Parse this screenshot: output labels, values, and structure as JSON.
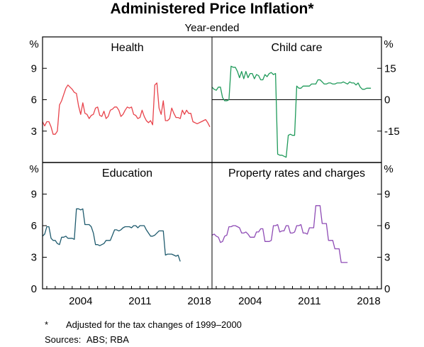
{
  "title": "Administered Price Inflation*",
  "subtitle": "Year-ended",
  "footnote": {
    "marker": "*",
    "text": "Adjusted for the tax changes of 1999–2000"
  },
  "sources": {
    "label": "Sources:",
    "text": "ABS; RBA"
  },
  "axis_unit": "%",
  "chart_data": [
    {
      "type": "line",
      "panel": "top-left",
      "title": "Health",
      "color": "#e8434b",
      "ylim": [
        0,
        12
      ],
      "yticks": [
        3,
        6,
        9
      ],
      "y_axis_side": "left",
      "xlim": [
        1999.5,
        2019.5
      ],
      "x_tick_labels": [],
      "points": [
        [
          1999.5,
          3.9
        ],
        [
          1999.75,
          3.5
        ],
        [
          2000.0,
          3.9
        ],
        [
          2000.25,
          3.9
        ],
        [
          2000.5,
          3.4
        ],
        [
          2000.75,
          2.7
        ],
        [
          2001.0,
          2.7
        ],
        [
          2001.25,
          3.0
        ],
        [
          2001.5,
          5.5
        ],
        [
          2001.75,
          5.9
        ],
        [
          2002.0,
          6.5
        ],
        [
          2002.25,
          7.1
        ],
        [
          2002.5,
          7.4
        ],
        [
          2002.75,
          7.2
        ],
        [
          2003.0,
          7.0
        ],
        [
          2003.25,
          6.7
        ],
        [
          2003.5,
          6.6
        ],
        [
          2003.75,
          5.4
        ],
        [
          2004.0,
          4.6
        ],
        [
          2004.25,
          5.7
        ],
        [
          2004.5,
          4.7
        ],
        [
          2004.75,
          4.6
        ],
        [
          2005.0,
          4.2
        ],
        [
          2005.25,
          4.5
        ],
        [
          2005.5,
          4.6
        ],
        [
          2005.75,
          5.2
        ],
        [
          2006.0,
          5.3
        ],
        [
          2006.25,
          4.5
        ],
        [
          2006.5,
          4.4
        ],
        [
          2006.75,
          4.9
        ],
        [
          2007.0,
          4.2
        ],
        [
          2007.25,
          4.4
        ],
        [
          2007.5,
          5.0
        ],
        [
          2007.75,
          5.1
        ],
        [
          2008.0,
          5.3
        ],
        [
          2008.25,
          5.3
        ],
        [
          2008.5,
          5.0
        ],
        [
          2008.75,
          4.4
        ],
        [
          2009.0,
          4.6
        ],
        [
          2009.25,
          5.0
        ],
        [
          2009.5,
          5.3
        ],
        [
          2009.75,
          5.2
        ],
        [
          2010.0,
          5.3
        ],
        [
          2010.25,
          4.6
        ],
        [
          2010.5,
          4.5
        ],
        [
          2010.75,
          4.2
        ],
        [
          2011.0,
          4.3
        ],
        [
          2011.25,
          5.0
        ],
        [
          2011.5,
          4.4
        ],
        [
          2011.75,
          4.0
        ],
        [
          2012.0,
          3.8
        ],
        [
          2012.25,
          4.0
        ],
        [
          2012.5,
          3.6
        ],
        [
          2012.75,
          7.4
        ],
        [
          2013.0,
          7.6
        ],
        [
          2013.25,
          5.2
        ],
        [
          2013.5,
          4.6
        ],
        [
          2013.75,
          5.9
        ],
        [
          2014.0,
          4.0
        ],
        [
          2014.25,
          4.0
        ],
        [
          2014.5,
          4.2
        ],
        [
          2014.75,
          5.2
        ],
        [
          2015.0,
          4.7
        ],
        [
          2015.25,
          4.3
        ],
        [
          2015.5,
          4.3
        ],
        [
          2015.75,
          4.2
        ],
        [
          2016.0,
          5.0
        ],
        [
          2016.25,
          4.6
        ],
        [
          2016.5,
          5.0
        ],
        [
          2016.75,
          4.7
        ],
        [
          2017.0,
          4.7
        ],
        [
          2017.25,
          3.9
        ],
        [
          2017.5,
          3.8
        ],
        [
          2017.75,
          3.7
        ],
        [
          2018.0,
          3.8
        ],
        [
          2018.25,
          3.9
        ],
        [
          2018.5,
          4.0
        ],
        [
          2018.75,
          4.1
        ],
        [
          2019.0,
          3.8
        ],
        [
          2019.25,
          3.4
        ]
      ]
    },
    {
      "type": "line",
      "panel": "top-right",
      "title": "Child care",
      "color": "#1f9a5a",
      "ylim": [
        -30,
        30
      ],
      "yticks": [
        -15,
        0,
        15
      ],
      "y_axis_side": "right",
      "xlim": [
        1999.5,
        2019.5
      ],
      "x_tick_labels": [],
      "points": [
        [
          1999.5,
          6
        ],
        [
          1999.75,
          5
        ],
        [
          2000.0,
          4.5
        ],
        [
          2000.25,
          6
        ],
        [
          2000.5,
          6
        ],
        [
          2000.75,
          1
        ],
        [
          2001.0,
          -0.5
        ],
        [
          2001.25,
          -0.5
        ],
        [
          2001.5,
          0
        ],
        [
          2001.75,
          16
        ],
        [
          2002.0,
          15.5
        ],
        [
          2002.25,
          15.5
        ],
        [
          2002.5,
          13.5
        ],
        [
          2002.75,
          10.5
        ],
        [
          2003.0,
          13.5
        ],
        [
          2003.25,
          10
        ],
        [
          2003.5,
          13.5
        ],
        [
          2003.75,
          10.5
        ],
        [
          2004.0,
          12.5
        ],
        [
          2004.25,
          12.5
        ],
        [
          2004.5,
          10
        ],
        [
          2004.75,
          12
        ],
        [
          2005.0,
          11.5
        ],
        [
          2005.25,
          9.5
        ],
        [
          2005.5,
          9.5
        ],
        [
          2005.75,
          12
        ],
        [
          2006.0,
          11
        ],
        [
          2006.25,
          12.5
        ],
        [
          2006.5,
          13
        ],
        [
          2006.75,
          12
        ],
        [
          2007.0,
          12.5
        ],
        [
          2007.25,
          -26
        ],
        [
          2007.5,
          -26.5
        ],
        [
          2007.75,
          -26.5
        ],
        [
          2008.0,
          -27
        ],
        [
          2008.25,
          -27.5
        ],
        [
          2008.5,
          -17
        ],
        [
          2008.75,
          -16.5
        ],
        [
          2009.0,
          -17
        ],
        [
          2009.25,
          -17
        ],
        [
          2009.5,
          6.5
        ],
        [
          2009.75,
          5.5
        ],
        [
          2010.0,
          5.5
        ],
        [
          2010.25,
          6.5
        ],
        [
          2010.5,
          6.5
        ],
        [
          2010.75,
          6.5
        ],
        [
          2011.0,
          6.5
        ],
        [
          2011.25,
          7.5
        ],
        [
          2011.5,
          7.5
        ],
        [
          2011.75,
          7.5
        ],
        [
          2012.0,
          9.5
        ],
        [
          2012.25,
          9.5
        ],
        [
          2012.5,
          8.5
        ],
        [
          2012.75,
          7.5
        ],
        [
          2013.0,
          7.5
        ],
        [
          2013.25,
          8
        ],
        [
          2013.5,
          8
        ],
        [
          2013.75,
          7.5
        ],
        [
          2014.0,
          7.5
        ],
        [
          2014.25,
          8
        ],
        [
          2014.5,
          8
        ],
        [
          2014.75,
          8
        ],
        [
          2015.0,
          8.5
        ],
        [
          2015.25,
          8
        ],
        [
          2015.5,
          7.5
        ],
        [
          2015.75,
          8.5
        ],
        [
          2016.0,
          8
        ],
        [
          2016.25,
          8
        ],
        [
          2016.5,
          7
        ],
        [
          2016.75,
          8
        ],
        [
          2017.0,
          6
        ],
        [
          2017.25,
          5
        ],
        [
          2017.5,
          5
        ],
        [
          2017.75,
          5.5
        ],
        [
          2018.0,
          5.5
        ],
        [
          2018.25,
          5.5
        ]
      ]
    },
    {
      "type": "line",
      "panel": "bottom-left",
      "title": "Education",
      "color": "#1f5b6e",
      "ylim": [
        0,
        12
      ],
      "yticks": [
        0,
        3,
        6,
        9
      ],
      "y_axis_side": "left",
      "xlim": [
        1999.5,
        2019.5
      ],
      "x_tick_labels": [
        {
          "x": 2004,
          "label": "2004"
        },
        {
          "x": 2011,
          "label": "2011"
        },
        {
          "x": 2018,
          "label": "2018"
        }
      ],
      "points": [
        [
          1999.5,
          5.0
        ],
        [
          1999.75,
          5.2
        ],
        [
          2000.0,
          5.9
        ],
        [
          2000.25,
          5.9
        ],
        [
          2000.5,
          4.8
        ],
        [
          2000.75,
          4.6
        ],
        [
          2001.0,
          4.6
        ],
        [
          2001.25,
          4.3
        ],
        [
          2001.5,
          4.2
        ],
        [
          2001.75,
          4.9
        ],
        [
          2002.0,
          4.9
        ],
        [
          2002.25,
          5.0
        ],
        [
          2002.5,
          4.8
        ],
        [
          2002.75,
          4.8
        ],
        [
          2003.0,
          4.8
        ],
        [
          2003.25,
          4.7
        ],
        [
          2003.5,
          7.6
        ],
        [
          2003.75,
          7.6
        ],
        [
          2004.0,
          7.5
        ],
        [
          2004.25,
          7.6
        ],
        [
          2004.5,
          6.1
        ],
        [
          2004.75,
          6.1
        ],
        [
          2005.0,
          6.1
        ],
        [
          2005.25,
          5.9
        ],
        [
          2005.5,
          5.3
        ],
        [
          2005.75,
          4.2
        ],
        [
          2006.0,
          4.2
        ],
        [
          2006.25,
          4.1
        ],
        [
          2006.5,
          4.2
        ],
        [
          2006.75,
          4.3
        ],
        [
          2007.0,
          4.6
        ],
        [
          2007.25,
          4.6
        ],
        [
          2007.5,
          4.6
        ],
        [
          2007.75,
          5.1
        ],
        [
          2008.0,
          5.6
        ],
        [
          2008.25,
          5.6
        ],
        [
          2008.5,
          5.5
        ],
        [
          2008.75,
          5.6
        ],
        [
          2009.0,
          5.8
        ],
        [
          2009.25,
          5.9
        ],
        [
          2009.5,
          5.9
        ],
        [
          2009.75,
          5.9
        ],
        [
          2010.0,
          5.8
        ],
        [
          2010.25,
          6.0
        ],
        [
          2010.5,
          6.0
        ],
        [
          2010.75,
          5.8
        ],
        [
          2011.0,
          6.0
        ],
        [
          2011.25,
          6.0
        ],
        [
          2011.5,
          6.0
        ],
        [
          2011.75,
          5.6
        ],
        [
          2012.0,
          5.3
        ],
        [
          2012.25,
          5.0
        ],
        [
          2012.5,
          5.0
        ],
        [
          2012.75,
          5.1
        ],
        [
          2013.0,
          5.3
        ],
        [
          2013.25,
          5.5
        ],
        [
          2013.5,
          5.5
        ],
        [
          2013.75,
          5.5
        ],
        [
          2014.0,
          3.2
        ],
        [
          2014.25,
          3.3
        ],
        [
          2014.5,
          3.3
        ],
        [
          2014.75,
          3.3
        ],
        [
          2015.0,
          3.2
        ],
        [
          2015.25,
          3.1
        ],
        [
          2015.5,
          3.2
        ],
        [
          2015.75,
          2.6
        ]
      ]
    },
    {
      "type": "line",
      "panel": "bottom-right",
      "title": "Property rates and charges",
      "color": "#8e4bb5",
      "ylim": [
        0,
        12
      ],
      "yticks": [
        0,
        3,
        6,
        9
      ],
      "y_axis_side": "right",
      "xlim": [
        1999.5,
        2019.5
      ],
      "x_tick_labels": [
        {
          "x": 2004,
          "label": "2004"
        },
        {
          "x": 2011,
          "label": "2011"
        },
        {
          "x": 2018,
          "label": "2018"
        }
      ],
      "points": [
        [
          1999.5,
          5.1
        ],
        [
          1999.75,
          5.2
        ],
        [
          2000.0,
          5.0
        ],
        [
          2000.25,
          4.9
        ],
        [
          2000.5,
          4.4
        ],
        [
          2000.75,
          4.5
        ],
        [
          2001.0,
          5.0
        ],
        [
          2001.25,
          5.1
        ],
        [
          2001.5,
          5.9
        ],
        [
          2001.75,
          5.9
        ],
        [
          2002.0,
          6.0
        ],
        [
          2002.25,
          6.0
        ],
        [
          2002.5,
          5.9
        ],
        [
          2002.75,
          5.8
        ],
        [
          2003.0,
          5.3
        ],
        [
          2003.25,
          5.3
        ],
        [
          2003.5,
          5.4
        ],
        [
          2003.75,
          5.2
        ],
        [
          2004.0,
          4.9
        ],
        [
          2004.25,
          4.9
        ],
        [
          2004.5,
          4.9
        ],
        [
          2004.75,
          5.4
        ],
        [
          2005.0,
          5.4
        ],
        [
          2005.25,
          5.7
        ],
        [
          2005.5,
          5.7
        ],
        [
          2005.75,
          4.5
        ],
        [
          2006.0,
          4.5
        ],
        [
          2006.25,
          4.5
        ],
        [
          2006.5,
          4.6
        ],
        [
          2006.75,
          6.0
        ],
        [
          2007.0,
          6.0
        ],
        [
          2007.25,
          6.1
        ],
        [
          2007.5,
          5.4
        ],
        [
          2007.75,
          5.5
        ],
        [
          2008.0,
          5.5
        ],
        [
          2008.25,
          6.0
        ],
        [
          2008.5,
          6.0
        ],
        [
          2008.75,
          5.3
        ],
        [
          2009.0,
          5.3
        ],
        [
          2009.25,
          5.4
        ],
        [
          2009.5,
          6.0
        ],
        [
          2009.75,
          6.0
        ],
        [
          2010.0,
          6.1
        ],
        [
          2010.25,
          5.3
        ],
        [
          2010.5,
          5.3
        ],
        [
          2010.75,
          5.2
        ],
        [
          2011.0,
          5.8
        ],
        [
          2011.25,
          5.8
        ],
        [
          2011.5,
          5.8
        ],
        [
          2011.75,
          7.9
        ],
        [
          2012.0,
          7.9
        ],
        [
          2012.25,
          7.9
        ],
        [
          2012.5,
          6.2
        ],
        [
          2012.75,
          6.2
        ],
        [
          2013.0,
          6.2
        ],
        [
          2013.25,
          4.6
        ],
        [
          2013.5,
          4.6
        ],
        [
          2013.75,
          4.6
        ],
        [
          2014.0,
          3.8
        ],
        [
          2014.25,
          3.8
        ],
        [
          2014.5,
          3.8
        ],
        [
          2014.75,
          2.5
        ],
        [
          2015.0,
          2.5
        ],
        [
          2015.25,
          2.5
        ],
        [
          2015.5,
          2.5
        ]
      ]
    }
  ]
}
